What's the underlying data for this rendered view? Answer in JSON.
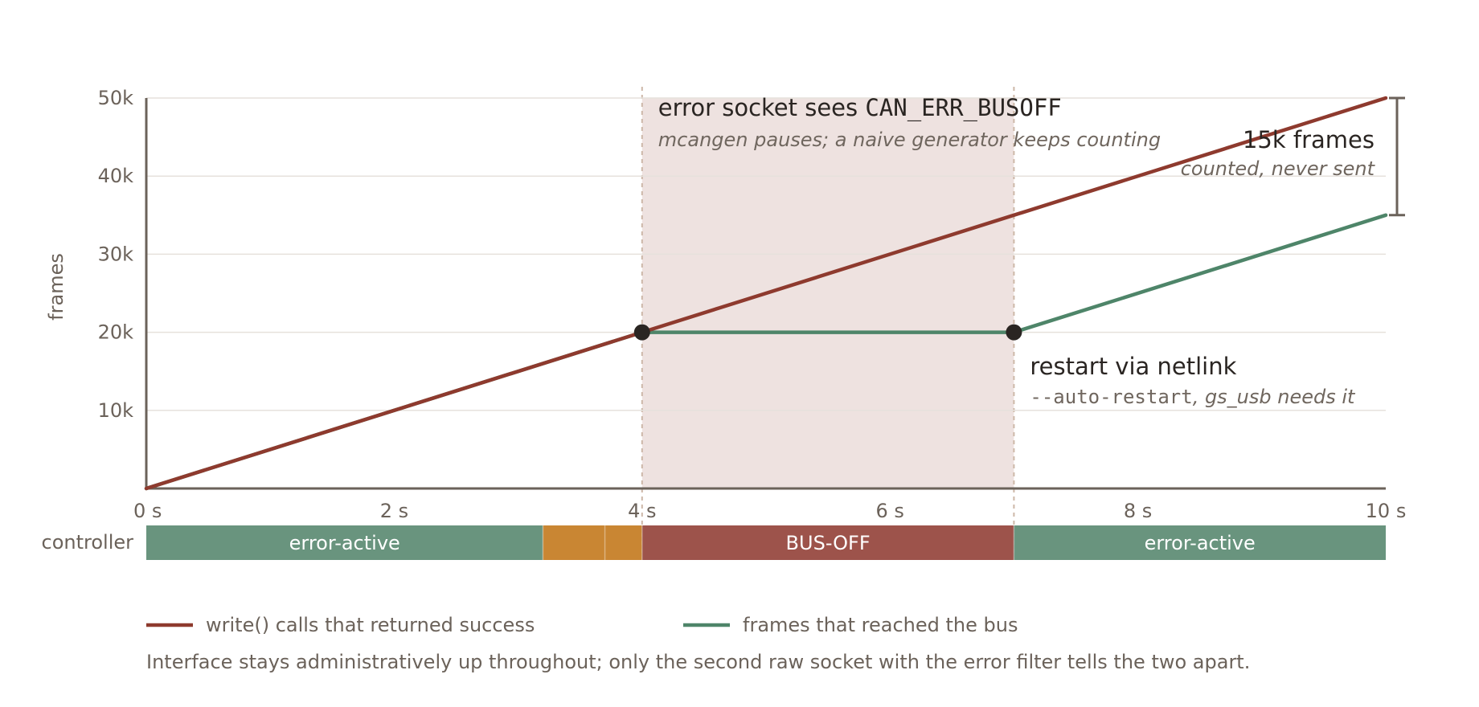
{
  "chart_data": {
    "type": "line",
    "x_unit": "s",
    "y_axis_label": "frames",
    "xlim": [
      0,
      10
    ],
    "ylim": [
      0,
      50000
    ],
    "x_ticks": [
      {
        "value": 0,
        "label": "0 s"
      },
      {
        "value": 2,
        "label": "2 s"
      },
      {
        "value": 4,
        "label": "4 s"
      },
      {
        "value": 6,
        "label": "6 s"
      },
      {
        "value": 8,
        "label": "8 s"
      },
      {
        "value": 10,
        "label": "10 s"
      }
    ],
    "y_ticks": [
      {
        "value": 10000,
        "label": "10k"
      },
      {
        "value": 20000,
        "label": "20k"
      },
      {
        "value": 30000,
        "label": "30k"
      },
      {
        "value": 40000,
        "label": "40k"
      },
      {
        "value": 50000,
        "label": "50k"
      }
    ],
    "grid": true,
    "series": [
      {
        "name": "write() calls that returned success",
        "color": "#8e3a2e",
        "x": [
          0,
          10
        ],
        "y": [
          0,
          50000
        ]
      },
      {
        "name": "frames that reached the bus",
        "color": "#4e8569",
        "x": [
          0,
          4,
          7,
          10
        ],
        "y": [
          0,
          20000,
          20000,
          35000
        ]
      }
    ],
    "markers": [
      {
        "x": 4,
        "y": 20000
      },
      {
        "x": 7.0,
        "y": 20000
      }
    ],
    "busoff_region": {
      "x_start": 4,
      "x_end": 7.0,
      "color": "#eee2e0",
      "title_prefix": "error socket sees ",
      "title_code": "CAN_ERR_BUSOFF",
      "subtitle": "mcangen pauses; a naive generator keeps counting"
    },
    "gap_annotation": {
      "x": 10,
      "y_low": 35000,
      "y_high": 50000,
      "title": "15k frames",
      "subtitle": "counted, never sent"
    },
    "restart_annotation": {
      "title": "restart via netlink",
      "code": "--auto-restart",
      "subtitle_rest": ", gs_usb needs it"
    },
    "controller_strip": {
      "label": "controller",
      "segments": [
        {
          "start": 0,
          "end": 3.2,
          "label": "error-active",
          "color": "#69947e"
        },
        {
          "start": 3.2,
          "end": 3.7,
          "label": "",
          "color": "#c98633"
        },
        {
          "start": 3.7,
          "end": 4.0,
          "label": "",
          "color": "#c98633"
        },
        {
          "start": 4.0,
          "end": 7.0,
          "label": "BUS-OFF",
          "color": "#9d534b"
        },
        {
          "start": 7.0,
          "end": 10,
          "label": "error-active",
          "color": "#69947e"
        }
      ]
    },
    "caption": "Interface stays administratively up throughout; only the second raw socket with the error filter tells the two apart."
  }
}
